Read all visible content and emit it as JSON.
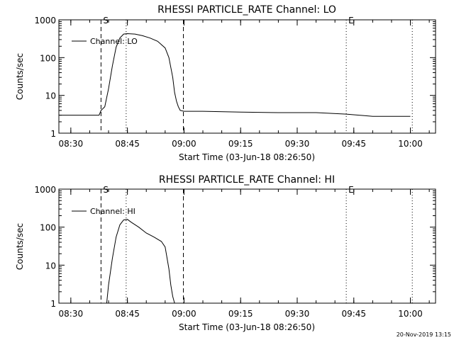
{
  "footer_timestamp": "20-Nov-2019 13:15",
  "chart_data": [
    {
      "type": "line",
      "title": "RHESSI PARTICLE_RATE Channel: LO",
      "xlabel": "Start Time (03-Jun-18 08:26:50)",
      "ylabel": "Counts/sec",
      "yscale": "log",
      "ylim": [
        1,
        1000
      ],
      "xlim": [
        "08:26:50",
        "10:06:40"
      ],
      "yticks": [
        "1",
        "10",
        "100",
        "1000"
      ],
      "xticks": [
        "08:30",
        "08:45",
        "09:00",
        "09:15",
        "09:30",
        "09:45",
        "10:00"
      ],
      "legend": {
        "placement": "top-left",
        "entries": [
          "Channel: LO"
        ]
      },
      "markers": [
        {
          "label": "S",
          "time": "08:38:00",
          "style": "dashed"
        },
        {
          "label": "",
          "time": "08:44:40",
          "style": "dotted"
        },
        {
          "label": "",
          "time": "08:59:50",
          "style": "dashed"
        },
        {
          "label": "E",
          "time": "09:43:00",
          "style": "dotted"
        },
        {
          "label": "",
          "time": "10:00:30",
          "style": "dotted"
        }
      ],
      "series": [
        {
          "name": "Channel: LO",
          "x": [
            "08:27:00",
            "08:31:00",
            "08:37:30",
            "08:38:00",
            "08:39:00",
            "08:40:00",
            "08:41:00",
            "08:42:00",
            "08:43:00",
            "08:44:00",
            "08:45:00",
            "08:47:00",
            "08:49:00",
            "08:51:00",
            "08:53:00",
            "08:55:00",
            "08:56:00",
            "08:57:00",
            "08:57:30",
            "08:58:00",
            "08:58:30",
            "08:59:00",
            "09:00:00",
            "09:05:00",
            "09:15:00",
            "09:25:00",
            "09:35:00",
            "09:43:00",
            "09:50:00",
            "10:00:00"
          ],
          "values": [
            3,
            3,
            3,
            4,
            5,
            15,
            60,
            190,
            330,
            420,
            430,
            420,
            380,
            330,
            270,
            180,
            100,
            30,
            12,
            7,
            5,
            4,
            3.8,
            3.8,
            3.6,
            3.5,
            3.5,
            3.2,
            2.8,
            2.8
          ]
        }
      ]
    },
    {
      "type": "line",
      "title": "RHESSI PARTICLE_RATE Channel: HI",
      "xlabel": "Start Time (03-Jun-18 08:26:50)",
      "ylabel": "Counts/sec",
      "yscale": "log",
      "ylim": [
        1,
        1000
      ],
      "xlim": [
        "08:26:50",
        "10:06:40"
      ],
      "yticks": [
        "1",
        "10",
        "100",
        "1000"
      ],
      "xticks": [
        "08:30",
        "08:45",
        "09:00",
        "09:15",
        "09:30",
        "09:45",
        "10:00"
      ],
      "legend": {
        "placement": "top-left",
        "entries": [
          "Channel: HI"
        ]
      },
      "markers": [
        {
          "label": "S",
          "time": "08:38:00",
          "style": "dashed"
        },
        {
          "label": "",
          "time": "08:44:40",
          "style": "dotted"
        },
        {
          "label": "",
          "time": "08:59:50",
          "style": "dashed"
        },
        {
          "label": "E",
          "time": "09:43:00",
          "style": "dotted"
        },
        {
          "label": "",
          "time": "10:00:30",
          "style": "dotted"
        }
      ],
      "series": [
        {
          "name": "Channel: HI",
          "x": [
            "08:39:30",
            "08:40:00",
            "08:41:00",
            "08:42:00",
            "08:43:00",
            "08:44:00",
            "08:45:00",
            "08:46:00",
            "08:48:00",
            "08:50:00",
            "08:52:00",
            "08:54:00",
            "08:55:00",
            "08:56:00",
            "08:56:30",
            "08:57:00",
            "08:57:30"
          ],
          "values": [
            1,
            3,
            15,
            55,
            115,
            155,
            160,
            135,
            100,
            70,
            55,
            42,
            30,
            8,
            3,
            1.5,
            1
          ]
        }
      ]
    }
  ]
}
